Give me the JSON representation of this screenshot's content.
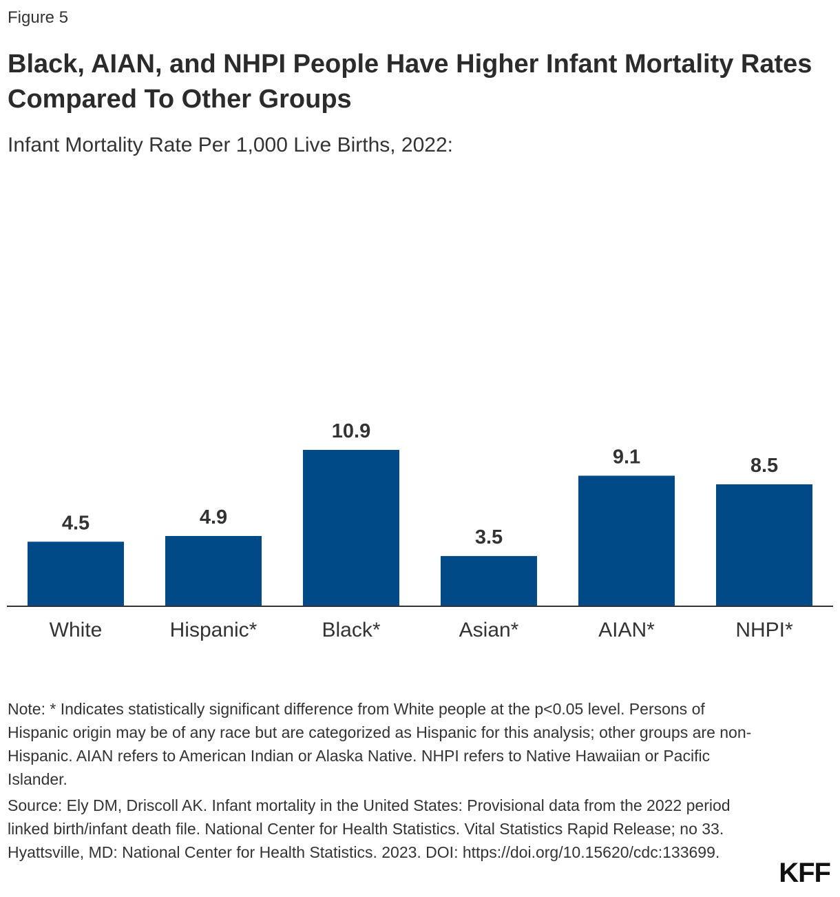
{
  "figure_label": "Figure 5",
  "title": "Black, AIAN, and NHPI People Have Higher Infant Mortality Rates Compared To Other Groups",
  "subtitle": "Infant Mortality Rate Per 1,000 Live Births, 2022:",
  "chart_data": {
    "type": "bar",
    "title": "Infant Mortality Rate Per 1,000 Live Births, 2022:",
    "categories": [
      "White",
      "Hispanic*",
      "Black*",
      "Asian*",
      "AIAN*",
      "NHPI*"
    ],
    "values": [
      4.5,
      4.9,
      10.9,
      3.5,
      9.1,
      8.5
    ],
    "value_labels": [
      "4.5",
      "4.9",
      "10.9",
      "3.5",
      "9.1",
      "8.5"
    ],
    "xlabel": "",
    "ylabel": "",
    "ylim": [
      0,
      11
    ],
    "grid": false,
    "bar_color": "#004a87"
  },
  "note": "Note: * Indicates statistically significant difference from White people at the p<0.05 level. Persons of Hispanic origin may be of any race but are categorized as Hispanic for this analysis; other groups are non-Hispanic. AIAN refers to American Indian or Alaska Native. NHPI refers to Native Hawaiian or Pacific Islander.",
  "source": "Source: Ely DM, Driscoll AK. Infant mortality in the United States: Provisional data from the 2022 period linked birth/infant death file. National Center for Health Statistics. Vital Statistics Rapid Release; no 33. Hyattsville, MD: National Center for Health Statistics. 2023. DOI: https://doi.org/10.15620/cdc:133699.",
  "logo": "KFF",
  "colors": {
    "bar": "#004a87",
    "axis": "#333333",
    "text": "#222222"
  }
}
